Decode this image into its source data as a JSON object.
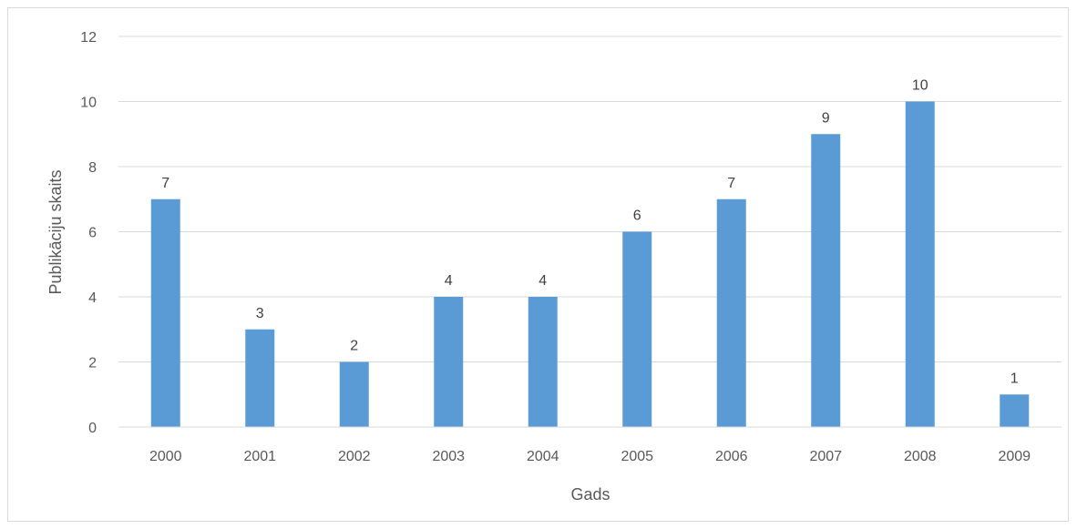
{
  "chart_data": {
    "type": "bar",
    "categories": [
      "2000",
      "2001",
      "2002",
      "2003",
      "2004",
      "2005",
      "2006",
      "2007",
      "2008",
      "2009"
    ],
    "values": [
      7,
      3,
      2,
      4,
      4,
      6,
      7,
      9,
      10,
      1
    ],
    "xlabel": "Gads",
    "ylabel": "Publikāciju skaits",
    "ylim": [
      0,
      12
    ],
    "yticks": [
      0,
      2,
      4,
      6,
      8,
      10,
      12
    ],
    "grid": true,
    "legend": "none",
    "bar_color": "#5b9bd5",
    "grid_color": "#d9d9d9"
  }
}
